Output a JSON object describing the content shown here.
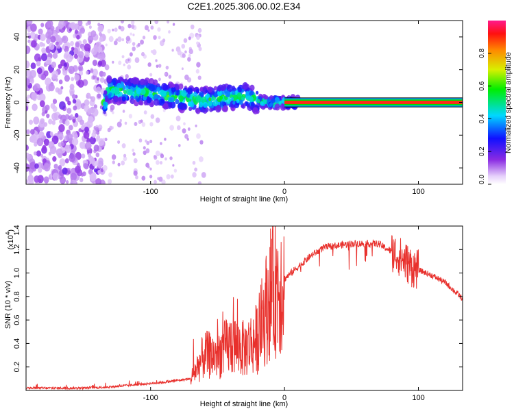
{
  "title": "C2E1.2025.306.00.02.E34",
  "chart_data": [
    {
      "type": "heatmap",
      "xlabel": "Height of straight line (km)",
      "ylabel": "Frequency (Hz)",
      "xlim": [
        -193,
        133
      ],
      "ylim": [
        -50,
        50
      ],
      "xticks": [
        -100,
        0,
        100
      ],
      "yticks": [
        -40,
        -20,
        0,
        20,
        40
      ],
      "colorbar": {
        "label": "Normalized spectral amplitude",
        "range": [
          0,
          1
        ],
        "ticks": [
          "0.0",
          "0.2",
          "0.4",
          "0.6",
          "0.8"
        ]
      },
      "ridge": {
        "description_points": [
          {
            "x": -133,
            "f": 8
          },
          {
            "x": -100,
            "f": 6
          },
          {
            "x": -80,
            "f": 3
          },
          {
            "x": -60,
            "f": 1
          },
          {
            "x": -45,
            "f": 3
          },
          {
            "x": -30,
            "f": 4
          },
          {
            "x": -20,
            "f": 1
          },
          {
            "x": -10,
            "f": 0
          },
          {
            "x": 0,
            "f": 0
          },
          {
            "x": 133,
            "f": 0
          }
        ],
        "saturated_band_start_x": 0,
        "saturated_band_halfwidth_hz": 1.5
      }
    },
    {
      "type": "line",
      "xlabel": "Height of straight line (km)",
      "ylabel": "SNR (10 * v/v)",
      "yscale_label": "(x10",
      "yscale_exponent": "4",
      "xlim": [
        -193,
        133
      ],
      "ylim": [
        0,
        1.4
      ],
      "xticks": [
        -100,
        0,
        100
      ],
      "yticks": [
        "0.2",
        "0.4",
        "0.6",
        "0.8",
        "1.0",
        "1.2",
        "1.4"
      ],
      "color": "#e8302c",
      "envelope": [
        {
          "x": -193,
          "y": 0.02
        },
        {
          "x": -150,
          "y": 0.02
        },
        {
          "x": -130,
          "y": 0.03
        },
        {
          "x": -110,
          "y": 0.05
        },
        {
          "x": -90,
          "y": 0.07
        },
        {
          "x": -70,
          "y": 0.1
        },
        {
          "x": -60,
          "y": 0.3
        },
        {
          "x": -50,
          "y": 0.3
        },
        {
          "x": -40,
          "y": 0.4
        },
        {
          "x": -30,
          "y": 0.35
        },
        {
          "x": -20,
          "y": 0.45
        },
        {
          "x": -10,
          "y": 0.85
        },
        {
          "x": 0,
          "y": 0.95
        },
        {
          "x": 10,
          "y": 1.05
        },
        {
          "x": 20,
          "y": 1.15
        },
        {
          "x": 30,
          "y": 1.22
        },
        {
          "x": 50,
          "y": 1.25
        },
        {
          "x": 70,
          "y": 1.25
        },
        {
          "x": 85,
          "y": 1.15
        },
        {
          "x": 95,
          "y": 1.05
        },
        {
          "x": 110,
          "y": 0.98
        },
        {
          "x": 120,
          "y": 0.92
        },
        {
          "x": 133,
          "y": 0.78
        }
      ]
    }
  ]
}
